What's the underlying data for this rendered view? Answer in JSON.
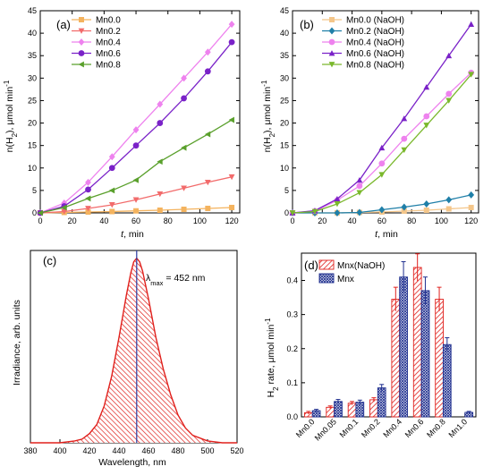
{
  "chart_data": [
    {
      "id": "a",
      "type": "line",
      "panel_label": "(a)",
      "xlabel_italic": "t",
      "xlabel_rest": ", min",
      "ylabel_parts": [
        "n(H",
        "2",
        "), μmol min",
        "-1"
      ],
      "xlim": [
        0,
        125
      ],
      "ylim": [
        0,
        45
      ],
      "xticks": [
        0,
        20,
        40,
        60,
        80,
        100,
        120
      ],
      "yticks": [
        0,
        5,
        10,
        15,
        20,
        25,
        30,
        35,
        40,
        45
      ],
      "legend_position": "top-left",
      "x": [
        0,
        15,
        30,
        45,
        60,
        75,
        90,
        105,
        120
      ],
      "series": [
        {
          "name": "Mn0.0",
          "color": "#f4b35e",
          "marker": "square",
          "values": [
            0,
            0.1,
            0.2,
            0.3,
            0.45,
            0.6,
            0.8,
            1.0,
            1.2
          ]
        },
        {
          "name": "Mn0.2",
          "color": "#f26b6b",
          "marker": "triangle-down",
          "values": [
            0,
            0.3,
            1.0,
            1.8,
            2.9,
            4.2,
            5.5,
            6.8,
            8.0
          ]
        },
        {
          "name": "Mn0.4",
          "color": "#ee82ee",
          "marker": "diamond",
          "values": [
            0,
            2.2,
            6.8,
            12.5,
            18.5,
            24.2,
            30.0,
            35.8,
            42.0
          ]
        },
        {
          "name": "Mn0.6",
          "color": "#7a22c8",
          "marker": "circle",
          "values": [
            0,
            1.5,
            5.2,
            10.0,
            15.0,
            20.0,
            25.5,
            31.5,
            38.0
          ]
        },
        {
          "name": "Mn0.8",
          "color": "#5aa02c",
          "marker": "triangle-left",
          "values": [
            0,
            1.2,
            3.2,
            5.0,
            7.3,
            11.4,
            14.5,
            17.5,
            20.7
          ]
        }
      ]
    },
    {
      "id": "b",
      "type": "line",
      "panel_label": "(b)",
      "xlabel_italic": "t",
      "xlabel_rest": ", min",
      "ylabel_parts": [
        "n(H",
        "2",
        "), μmol min",
        "-1"
      ],
      "xlim": [
        0,
        125
      ],
      "ylim": [
        0,
        45
      ],
      "xticks": [
        0,
        20,
        40,
        60,
        80,
        100,
        120
      ],
      "yticks": [
        0,
        5,
        10,
        15,
        20,
        25,
        30,
        35,
        40,
        45
      ],
      "legend_position": "top-left",
      "x": [
        0,
        15,
        30,
        45,
        60,
        75,
        90,
        105,
        120
      ],
      "series": [
        {
          "name": "Mn0.0 (NaOH)",
          "color": "#f4c68a",
          "marker": "square",
          "values": [
            0,
            0,
            0,
            0.1,
            0.2,
            0.4,
            0.6,
            0.9,
            1.2
          ]
        },
        {
          "name": "Mn0.2 (NaOH)",
          "color": "#1f7fa8",
          "marker": "diamond",
          "values": [
            0,
            0,
            0,
            0.1,
            0.7,
            1.3,
            2.0,
            2.9,
            4.0
          ]
        },
        {
          "name": "Mn0.4 (NaOH)",
          "color": "#ee82ee",
          "marker": "circle",
          "values": [
            0,
            0.4,
            2.8,
            6.0,
            11.0,
            16.5,
            21.5,
            26.5,
            31.2
          ]
        },
        {
          "name": "Mn0.6 (NaOH)",
          "color": "#7a22c8",
          "marker": "triangle-up",
          "values": [
            0,
            0.5,
            3.1,
            7.3,
            14.5,
            21.0,
            28.0,
            35.0,
            42.0
          ]
        },
        {
          "name": "Mn0.8 (NaOH)",
          "color": "#7ab82c",
          "marker": "triangle-down",
          "values": [
            0,
            0.3,
            2.0,
            4.5,
            8.5,
            14.0,
            19.5,
            25.0,
            30.8
          ]
        }
      ]
    },
    {
      "id": "c",
      "type": "area",
      "panel_label": "(c)",
      "xlabel": "Wavelength, nm",
      "ylabel": "Irradiance, arb. units",
      "xlim": [
        380,
        520
      ],
      "xticks": [
        380,
        400,
        420,
        440,
        460,
        480,
        500,
        520
      ],
      "annotation_parts": [
        "λ",
        "max",
        " = 452 nm"
      ],
      "peak_wavelength": 452,
      "x": [
        380,
        400,
        410,
        415,
        420,
        425,
        430,
        435,
        440,
        445,
        448,
        450,
        452,
        454,
        456,
        460,
        465,
        470,
        475,
        480,
        485,
        490,
        500,
        510,
        520
      ],
      "y": [
        0,
        0,
        0.01,
        0.02,
        0.05,
        0.1,
        0.2,
        0.36,
        0.57,
        0.8,
        0.92,
        0.98,
        1.0,
        0.98,
        0.93,
        0.78,
        0.57,
        0.4,
        0.26,
        0.15,
        0.08,
        0.04,
        0.01,
        0,
        0
      ],
      "color": "#e0201c"
    },
    {
      "id": "d",
      "type": "bar",
      "panel_label": "(d)",
      "ylabel_parts": [
        "H",
        "2",
        " rate, μmol min",
        "-1"
      ],
      "ylim": [
        0,
        0.48
      ],
      "yticks": [
        0.0,
        0.1,
        0.2,
        0.3,
        0.4
      ],
      "legend_position": "top-left",
      "categories": [
        "Mn0.0",
        "Mn0.05",
        "Mn0.1",
        "Mn0.2",
        "Mn0.4",
        "Mn0.6",
        "Mn0.8",
        "Mn1.0"
      ],
      "series": [
        {
          "name": "Mnx(NaOH)",
          "color": "#e0201c",
          "values": [
            0.012,
            0.028,
            0.04,
            0.05,
            0.345,
            0.438,
            0.345,
            null
          ],
          "errors": [
            0.004,
            0.004,
            0.005,
            0.006,
            0.035,
            0.04,
            0.035,
            null
          ]
        },
        {
          "name": "Mnx",
          "color": "#1f2f8f",
          "values": [
            0.018,
            0.045,
            0.043,
            0.085,
            0.41,
            0.37,
            0.212,
            0.013
          ],
          "errors": [
            0.004,
            0.006,
            0.006,
            0.01,
            0.045,
            0.04,
            0.02,
            0.003
          ]
        }
      ]
    }
  ]
}
